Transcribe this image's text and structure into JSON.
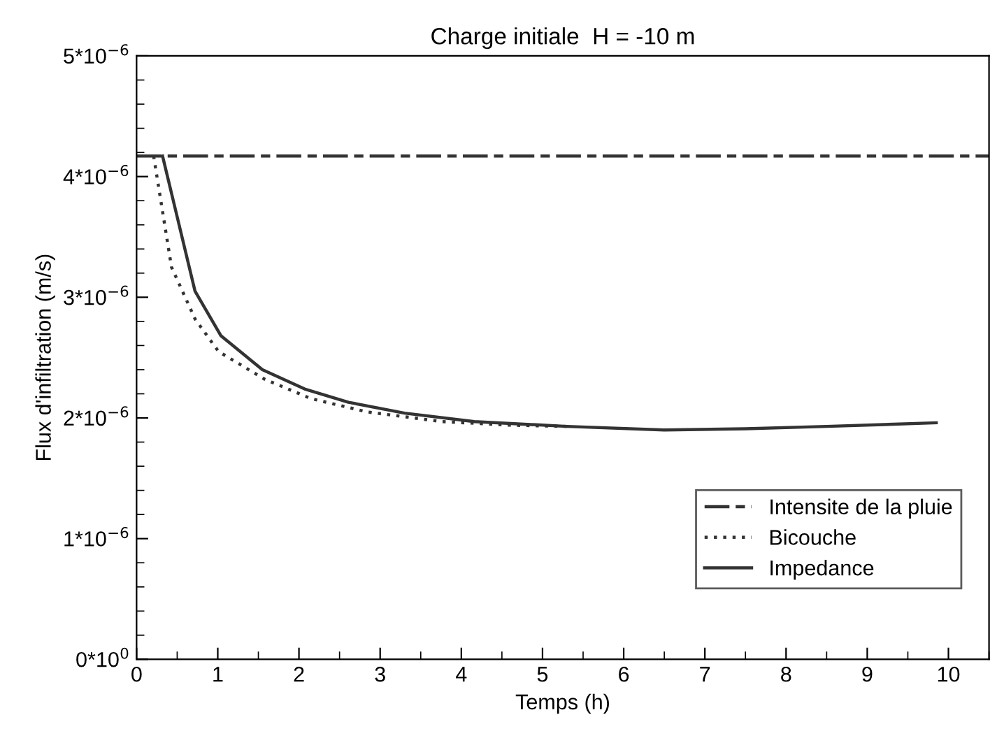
{
  "chart_data": {
    "type": "line",
    "title": "Charge initiale  H = -10 m",
    "xlabel": "Temps (h)",
    "ylabel": "Flux d'infiltration (m/s)",
    "xlim": [
      0,
      10.5
    ],
    "xticks": [
      0,
      1,
      2,
      3,
      4,
      5,
      6,
      7,
      8,
      9,
      10
    ],
    "ylim": [
      0,
      5e-06
    ],
    "yticks": [
      {
        "value": 0,
        "label": "0*10$^{0}$"
      },
      {
        "value": 1e-06,
        "label": "1*10$^{−6}$"
      },
      {
        "value": 2e-06,
        "label": "2*10$^{−6}$"
      },
      {
        "value": 3e-06,
        "label": "3*10$^{−6}$"
      },
      {
        "value": 4e-06,
        "label": "4*10$^{−6}$"
      },
      {
        "value": 5e-06,
        "label": "5*10$^{−6}$"
      }
    ],
    "grid": false,
    "legend": "bottom right",
    "marker": "none",
    "series": [
      {
        "name": "Intensite de la pluie",
        "color": "#333333",
        "line_style": "dashed",
        "x": [
          0,
          10.5
        ],
        "values": [
          4.17e-06,
          4.17e-06
        ]
      },
      {
        "name": "Bicouche",
        "color": "#333333",
        "line_style": "dotted",
        "x": [
          0.21,
          0.43,
          0.72,
          1.01,
          1.58,
          2.15,
          2.84,
          3.76,
          4.6,
          5.3
        ],
        "values": [
          4.17e-06,
          3.25e-06,
          2.82e-06,
          2.55e-06,
          2.32e-06,
          2.16e-06,
          2.05e-06,
          1.97e-06,
          1.94e-06,
          1.93e-06
        ]
      },
      {
        "name": "Impedance",
        "color": "#333333",
        "line_style": "solid",
        "x": [
          0.32,
          0.72,
          1.04,
          1.55,
          2.07,
          2.61,
          3.3,
          4.16,
          5.3,
          6.5,
          7.5,
          8.5,
          9.85
        ],
        "values": [
          4.17e-06,
          3.05e-06,
          2.68e-06,
          2.4e-06,
          2.24e-06,
          2.13e-06,
          2.04e-06,
          1.97e-06,
          1.93e-06,
          1.9e-06,
          1.91e-06,
          1.93e-06,
          1.96e-06
        ]
      }
    ]
  }
}
